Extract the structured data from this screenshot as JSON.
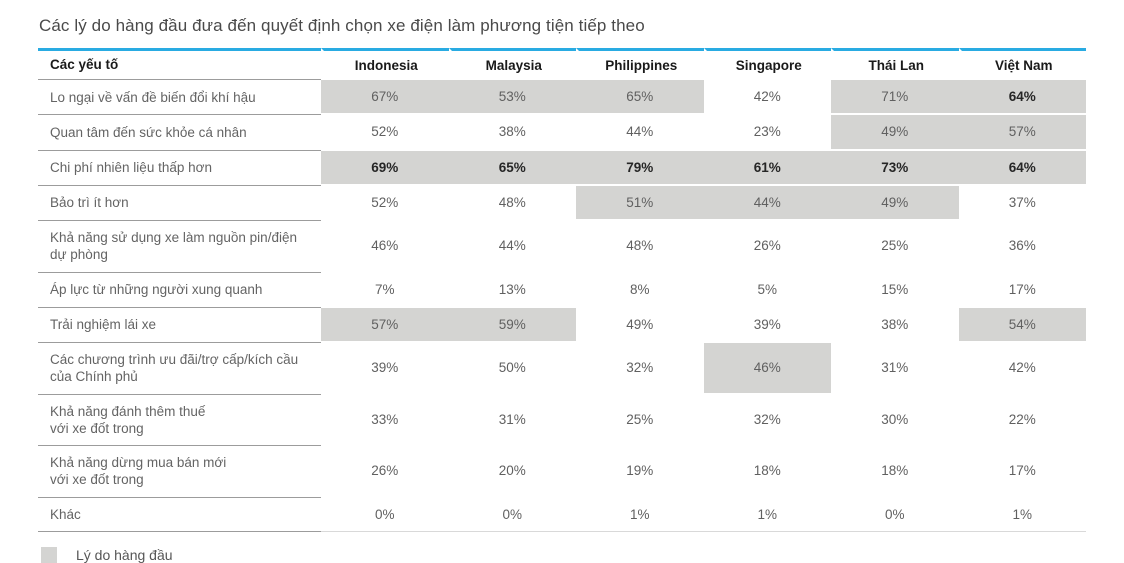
{
  "page": {
    "title": "Các lý do hàng đầu đưa đến quyết định chọn xe điện làm phương tiện tiếp theo"
  },
  "colors": {
    "accent_blue": "#29abe2",
    "highlight_gray": "#d4d4d2"
  },
  "legend": {
    "swatch_color": "#d4d4d2",
    "label": "Lý do hàng đầu"
  },
  "chart_data": {
    "type": "table",
    "title": "Các lý do hàng đầu đưa đến quyết định chọn xe điện làm phương tiện tiếp theo",
    "unit": "%",
    "columns": [
      "Các yếu tố",
      "Indonesia",
      "Malaysia",
      "Philippines",
      "Singapore",
      "Thái Lan",
      "Việt Nam"
    ],
    "categories": [
      "Indonesia",
      "Malaysia",
      "Philippines",
      "Singapore",
      "Thái Lan",
      "Việt Nam"
    ],
    "legend": {
      "swatch_color": "#d4d4d2",
      "label": "Lý do hàng đầu"
    },
    "rows": [
      {
        "label": "Lo ngại về vấn đề biến đổi khí hậu",
        "values": [
          67,
          53,
          65,
          42,
          71,
          64
        ],
        "top_reason": [
          true,
          true,
          true,
          false,
          true,
          true
        ],
        "bold": [
          false,
          false,
          false,
          false,
          false,
          true
        ]
      },
      {
        "label": "Quan tâm đến sức khỏe cá nhân",
        "values": [
          52,
          38,
          44,
          23,
          49,
          57
        ],
        "top_reason": [
          false,
          false,
          false,
          false,
          true,
          true
        ],
        "bold": [
          false,
          false,
          false,
          false,
          false,
          false
        ]
      },
      {
        "label": "Chi phí nhiên liệu thấp hơn",
        "values": [
          69,
          65,
          79,
          61,
          73,
          64
        ],
        "top_reason": [
          true,
          true,
          true,
          true,
          true,
          true
        ],
        "bold": [
          true,
          true,
          true,
          true,
          true,
          true
        ]
      },
      {
        "label": "Bảo trì ít hơn",
        "values": [
          52,
          48,
          51,
          44,
          49,
          37
        ],
        "top_reason": [
          false,
          false,
          true,
          true,
          true,
          false
        ],
        "bold": [
          false,
          false,
          false,
          false,
          false,
          false
        ]
      },
      {
        "label": "Khả năng sử dụng xe làm nguồn pin/điện\ndự phòng",
        "values": [
          46,
          44,
          48,
          26,
          25,
          36
        ],
        "top_reason": [
          false,
          false,
          false,
          false,
          false,
          false
        ],
        "bold": [
          false,
          false,
          false,
          false,
          false,
          false
        ]
      },
      {
        "label": "Áp lực từ những người xung quanh",
        "values": [
          7,
          13,
          8,
          5,
          15,
          17
        ],
        "top_reason": [
          false,
          false,
          false,
          false,
          false,
          false
        ],
        "bold": [
          false,
          false,
          false,
          false,
          false,
          false
        ]
      },
      {
        "label": "Trải nghiệm lái xe",
        "values": [
          57,
          59,
          49,
          39,
          38,
          54
        ],
        "top_reason": [
          true,
          true,
          false,
          false,
          false,
          true
        ],
        "bold": [
          false,
          false,
          false,
          false,
          false,
          false
        ]
      },
      {
        "label": "Các chương trình ưu đãi/trợ cấp/kích cầu\ncủa Chính phủ",
        "values": [
          39,
          50,
          32,
          46,
          31,
          42
        ],
        "top_reason": [
          false,
          false,
          false,
          true,
          false,
          false
        ],
        "bold": [
          false,
          false,
          false,
          false,
          false,
          false
        ]
      },
      {
        "label": "Khả năng đánh thêm thuế\nvới xe đốt trong",
        "values": [
          33,
          31,
          25,
          32,
          30,
          22
        ],
        "top_reason": [
          false,
          false,
          false,
          false,
          false,
          false
        ],
        "bold": [
          false,
          false,
          false,
          false,
          false,
          false
        ]
      },
      {
        "label": "Khả năng dừng mua bán mới\nvới xe đốt trong",
        "values": [
          26,
          20,
          19,
          18,
          18,
          17
        ],
        "top_reason": [
          false,
          false,
          false,
          false,
          false,
          false
        ],
        "bold": [
          false,
          false,
          false,
          false,
          false,
          false
        ]
      },
      {
        "label": "Khác",
        "values": [
          0,
          0,
          1,
          1,
          0,
          1
        ],
        "top_reason": [
          false,
          false,
          false,
          false,
          false,
          false
        ],
        "bold": [
          false,
          false,
          false,
          false,
          false,
          false
        ]
      }
    ]
  }
}
